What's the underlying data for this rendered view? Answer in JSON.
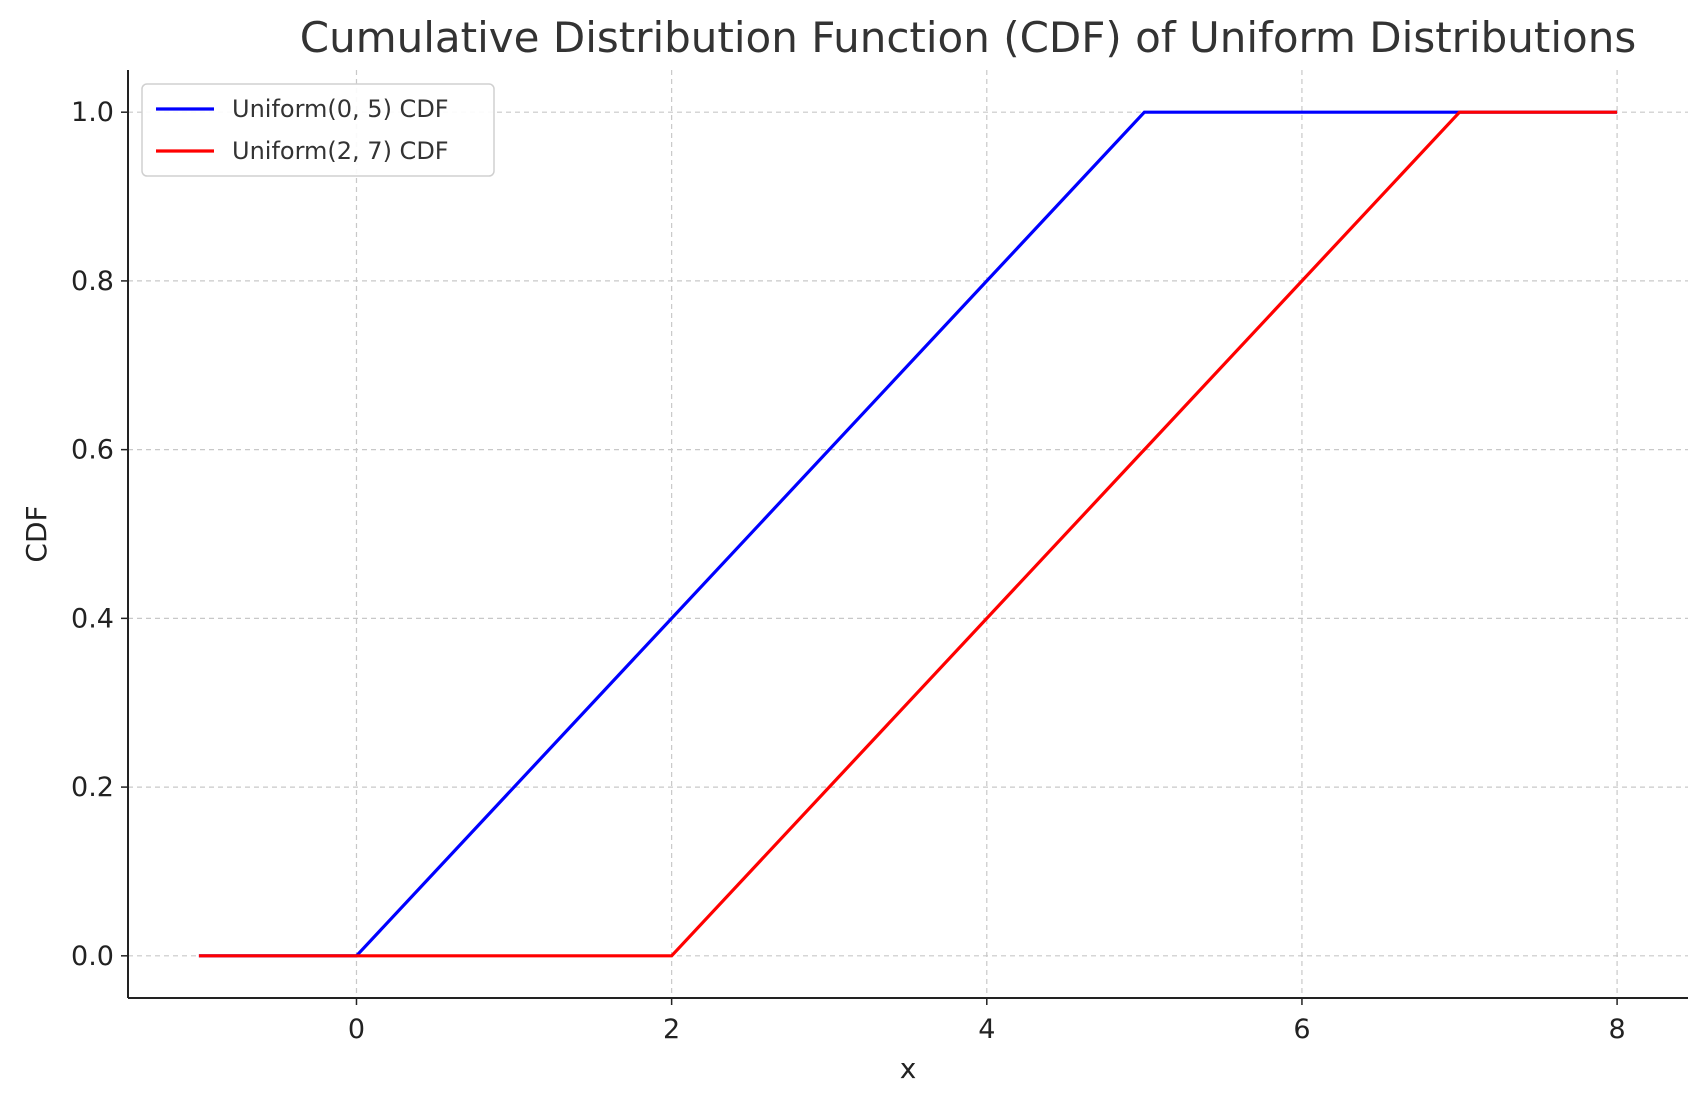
{
  "chart_data": {
    "type": "line",
    "title": "Cumulative Distribution Function (CDF) of Uniform Distributions",
    "xlabel": "x",
    "ylabel": "CDF",
    "xlim": [
      -1.45,
      8.45
    ],
    "ylim": [
      -0.05,
      1.05
    ],
    "xticks": [
      0,
      2,
      4,
      6,
      8
    ],
    "yticks": [
      0.0,
      0.2,
      0.4,
      0.6,
      0.8,
      1.0
    ],
    "xtick_labels": [
      "0",
      "2",
      "4",
      "6",
      "8"
    ],
    "ytick_labels": [
      "0.0",
      "0.2",
      "0.4",
      "0.6",
      "0.8",
      "1.0"
    ],
    "grid": true,
    "legend_position": "top-left",
    "series": [
      {
        "name": "Uniform(0, 5) CDF",
        "color": "#0000ff",
        "x": [
          -1,
          0,
          5,
          8
        ],
        "y": [
          0,
          0,
          1,
          1
        ]
      },
      {
        "name": "Uniform(2, 7) CDF",
        "color": "#ff0000",
        "x": [
          -1,
          2,
          7,
          8
        ],
        "y": [
          0,
          0,
          1,
          1
        ]
      }
    ]
  }
}
